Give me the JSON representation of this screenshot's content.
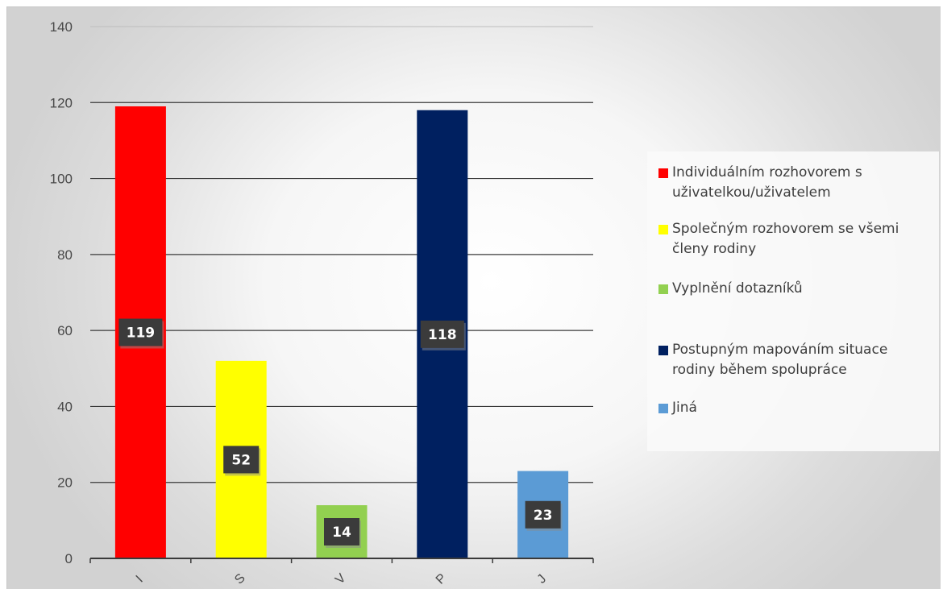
{
  "chart_data": {
    "type": "bar",
    "categories": [
      "I",
      "S",
      "V",
      "P",
      "J"
    ],
    "values": [
      119,
      52,
      14,
      118,
      23
    ],
    "colors": [
      "#ff0000",
      "#ffff00",
      "#92d050",
      "#002060",
      "#5b9bd5"
    ],
    "ylim": [
      0,
      140
    ],
    "yticks": [
      0,
      20,
      40,
      60,
      80,
      100,
      120,
      140
    ],
    "grid": true,
    "legend_position": "right",
    "legend": [
      {
        "label": "Individuálním rozhovorem s uživatelkou/uživatelem",
        "color": "#ff0000"
      },
      {
        "label": "Společným rozhovorem se všemi členy rodiny",
        "color": "#ffff00"
      },
      {
        "label": "Vyplnění dotazníků",
        "color": "#92d050"
      },
      {
        "label": "Postupným mapováním situace rodiny během spolupráce",
        "color": "#002060"
      },
      {
        "label": "Jiná",
        "color": "#5b9bd5"
      }
    ]
  }
}
